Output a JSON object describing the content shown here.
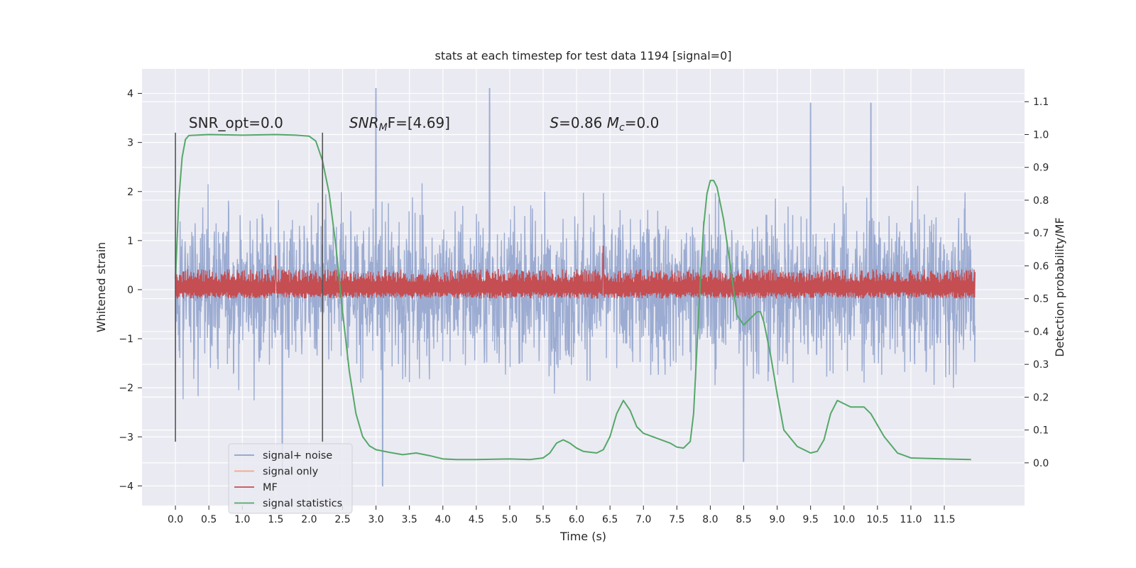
{
  "chart_data": {
    "type": "line",
    "title": "stats at each timestep for test data 1194 [signal=0]",
    "xlabel": "Time (s)",
    "ylabel": "Whitened strain",
    "y2label": "Detection probability/MF",
    "xlim": [
      -0.5,
      12.7
    ],
    "ylim": [
      -4.4,
      4.5
    ],
    "y2lim": [
      -0.13,
      1.2
    ],
    "x_ticks": [
      0.0,
      0.5,
      1.0,
      1.5,
      2.0,
      2.5,
      3.0,
      3.5,
      4.0,
      4.5,
      5.0,
      5.5,
      6.0,
      6.5,
      7.0,
      7.5,
      8.0,
      8.5,
      9.0,
      9.5,
      10.0,
      10.5,
      11.0,
      11.5
    ],
    "x_tick_labels": [
      "0.0",
      "0.5",
      "1.0",
      "1.5",
      "2.0",
      "2.5",
      "3.0",
      "3.5",
      "4.0",
      "4.5",
      "5.0",
      "5.5",
      "6.0",
      "6.5",
      "7.0",
      "7.5",
      "8.0",
      "8.5",
      "9.0",
      "9.5",
      "10.0",
      "10.5",
      "11.0",
      "11.5"
    ],
    "y_ticks": [
      -4,
      -3,
      -2,
      -1,
      0,
      1,
      2,
      3,
      4
    ],
    "y_tick_labels": [
      "−4",
      "−3",
      "−2",
      "−1",
      "0",
      "1",
      "2",
      "3",
      "4"
    ],
    "y2_ticks": [
      0.0,
      0.1,
      0.2,
      0.3,
      0.4,
      0.5,
      0.6,
      0.7,
      0.8,
      0.9,
      1.0,
      1.1
    ],
    "y2_tick_labels": [
      "0.0",
      "0.1",
      "0.2",
      "0.3",
      "0.4",
      "0.5",
      "0.6",
      "0.7",
      "0.8",
      "0.9",
      "1.0",
      "1.1"
    ],
    "grid": true,
    "legend_position": "lower-left",
    "series": [
      {
        "name": "signal+ noise",
        "color": "#8da0cb",
        "axis": "left",
        "description_values": "dense noise trace, samples spanning 0.0 to 11.96 s",
        "x_range": [
          0.0,
          11.96
        ],
        "typical_band": [
          -2.0,
          2.0
        ],
        "peaks": [
          {
            "x": 3.0,
            "y": 4.1
          },
          {
            "x": 4.7,
            "y": 4.1
          },
          {
            "x": 9.5,
            "y": 3.8
          },
          {
            "x": 10.4,
            "y": 3.8
          },
          {
            "x": 3.1,
            "y": -4.0
          },
          {
            "x": 1.6,
            "y": -3.8
          },
          {
            "x": 8.5,
            "y": -3.5
          }
        ]
      },
      {
        "name": "signal only",
        "color": "#f4a582",
        "axis": "left",
        "x": [
          0.0,
          11.96
        ],
        "y": [
          0.0,
          0.0
        ]
      },
      {
        "name": "MF",
        "color": "#c44e52",
        "axis": "right",
        "x_range": [
          0.0,
          11.96
        ],
        "typical_band": [
          0.5,
          0.55
        ],
        "peaks": [
          {
            "x": 6.4,
            "y": 0.66
          },
          {
            "x": 1.5,
            "y": 0.63
          }
        ]
      },
      {
        "name": "signal statistics",
        "color": "#55a868",
        "axis": "right",
        "x": [
          0.0,
          0.05,
          0.1,
          0.15,
          0.2,
          0.5,
          1.0,
          1.5,
          1.8,
          2.0,
          2.1,
          2.2,
          2.3,
          2.4,
          2.5,
          2.6,
          2.7,
          2.8,
          2.9,
          3.0,
          3.2,
          3.4,
          3.6,
          3.8,
          4.0,
          4.2,
          4.5,
          5.0,
          5.3,
          5.5,
          5.6,
          5.7,
          5.8,
          5.9,
          6.0,
          6.1,
          6.3,
          6.4,
          6.5,
          6.6,
          6.7,
          6.8,
          6.9,
          7.0,
          7.2,
          7.4,
          7.5,
          7.6,
          7.7,
          7.75,
          7.8,
          7.85,
          7.9,
          7.95,
          8.0,
          8.05,
          8.1,
          8.2,
          8.3,
          8.4,
          8.5,
          8.6,
          8.7,
          8.75,
          8.8,
          8.9,
          9.0,
          9.1,
          9.3,
          9.5,
          9.6,
          9.7,
          9.8,
          9.9,
          10.0,
          10.1,
          10.2,
          10.3,
          10.4,
          10.6,
          10.8,
          11.0,
          11.5,
          11.9
        ],
        "y": [
          0.56,
          0.8,
          0.93,
          0.985,
          0.997,
          1.0,
          0.998,
          1.0,
          0.998,
          0.995,
          0.98,
          0.92,
          0.82,
          0.66,
          0.46,
          0.28,
          0.15,
          0.08,
          0.052,
          0.04,
          0.032,
          0.025,
          0.03,
          0.022,
          0.012,
          0.01,
          0.01,
          0.012,
          0.01,
          0.015,
          0.03,
          0.06,
          0.07,
          0.06,
          0.045,
          0.035,
          0.03,
          0.04,
          0.08,
          0.15,
          0.19,
          0.16,
          0.11,
          0.09,
          0.075,
          0.06,
          0.048,
          0.045,
          0.065,
          0.15,
          0.35,
          0.55,
          0.72,
          0.82,
          0.86,
          0.86,
          0.84,
          0.74,
          0.6,
          0.45,
          0.42,
          0.44,
          0.46,
          0.46,
          0.43,
          0.33,
          0.21,
          0.1,
          0.05,
          0.03,
          0.035,
          0.07,
          0.15,
          0.19,
          0.18,
          0.17,
          0.17,
          0.17,
          0.15,
          0.08,
          0.03,
          0.015,
          0.012,
          0.01
        ]
      }
    ],
    "vlines": [
      0.0,
      2.2
    ],
    "annotations": [
      {
        "text": "SNR_opt=0.0",
        "x": 0.2,
        "y": 3.3
      },
      {
        "text_parts": [
          "SNR",
          "M",
          "F=[4.69]"
        ],
        "x": 2.6,
        "y": 3.3
      },
      {
        "text_parts": [
          "S",
          "=0.86   ",
          "M",
          "c",
          "=0.0"
        ],
        "x": 5.6,
        "y": 3.3
      }
    ]
  }
}
